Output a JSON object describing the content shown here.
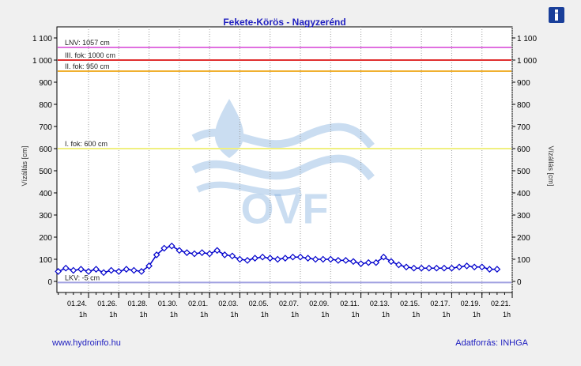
{
  "chart_data": {
    "type": "line",
    "title": "Fekete-Körös - Nagyzerénd",
    "y_label": "Vízállás [cm]",
    "y2_label": "Vízállás [cm]",
    "watermark": "OVF",
    "footer_left": "www.hydroinfo.hu",
    "footer_right": "Adatforrás: INHGA",
    "categories": [
      null,
      null,
      null,
      null,
      "01.24.",
      null,
      null,
      null,
      "01.26.",
      null,
      null,
      null,
      "01.28.",
      null,
      null,
      null,
      "01.30.",
      null,
      null,
      null,
      "02.01.",
      null,
      null,
      null,
      "02.03.",
      null,
      null,
      null,
      "02.05.",
      null,
      null,
      null,
      "02.07.",
      null,
      null,
      null,
      "02.09.",
      null,
      null,
      null,
      "02.11.",
      null,
      null,
      null,
      "02.13.",
      null,
      null,
      null,
      "02.15.",
      null,
      null,
      null,
      "02.17.",
      null,
      null,
      null,
      "02.19.",
      null,
      null,
      null,
      "02.21."
    ],
    "category_hours": [
      null,
      null,
      null,
      null,
      "1h",
      null,
      null,
      null,
      "1h",
      null,
      null,
      null,
      "1h",
      null,
      null,
      null,
      "1h",
      null,
      null,
      null,
      "1h",
      null,
      null,
      null,
      "1h",
      null,
      null,
      null,
      "1h",
      null,
      null,
      null,
      "1h",
      null,
      null,
      null,
      "1h",
      null,
      null,
      null,
      "1h",
      null,
      null,
      null,
      "1h",
      null,
      null,
      null,
      "1h",
      null,
      null,
      null,
      "1h",
      null,
      null,
      null,
      "1h",
      null,
      null,
      null,
      "1h"
    ],
    "series": [
      {
        "name": "Vízállás",
        "color": "#0000cc",
        "values": [
          45,
          60,
          50,
          55,
          45,
          55,
          40,
          50,
          45,
          55,
          50,
          45,
          70,
          120,
          150,
          160,
          140,
          130,
          125,
          130,
          125,
          140,
          120,
          115,
          100,
          95,
          105,
          110,
          105,
          100,
          105,
          110,
          110,
          105,
          100,
          100,
          100,
          95,
          95,
          90,
          80,
          85,
          85,
          110,
          90,
          75,
          65,
          60,
          60,
          60,
          60,
          60,
          60,
          65,
          70,
          65,
          65,
          55,
          55,
          null,
          null
        ]
      }
    ],
    "thresholds": [
      {
        "label": "LNV: 1057 cm",
        "value": 1057,
        "color": "#e070e0"
      },
      {
        "label": "III. fok: 1000 cm",
        "value": 1000,
        "color": "#e03030"
      },
      {
        "label": "II. fok: 950 cm",
        "value": 950,
        "color": "#f0b030"
      },
      {
        "label": "I. fok: 600 cm",
        "value": 600,
        "color": "#f0f080"
      },
      {
        "label": "LKV: -5 cm",
        "value": -5,
        "color": "#a0a0e0"
      }
    ],
    "ylim": [
      -50,
      1150
    ],
    "yticks": [
      0,
      100,
      200,
      300,
      400,
      500,
      600,
      700,
      800,
      900,
      {
        "value": 1000,
        "label": "1 000"
      },
      {
        "value": 1100,
        "label": "1 100"
      }
    ]
  }
}
